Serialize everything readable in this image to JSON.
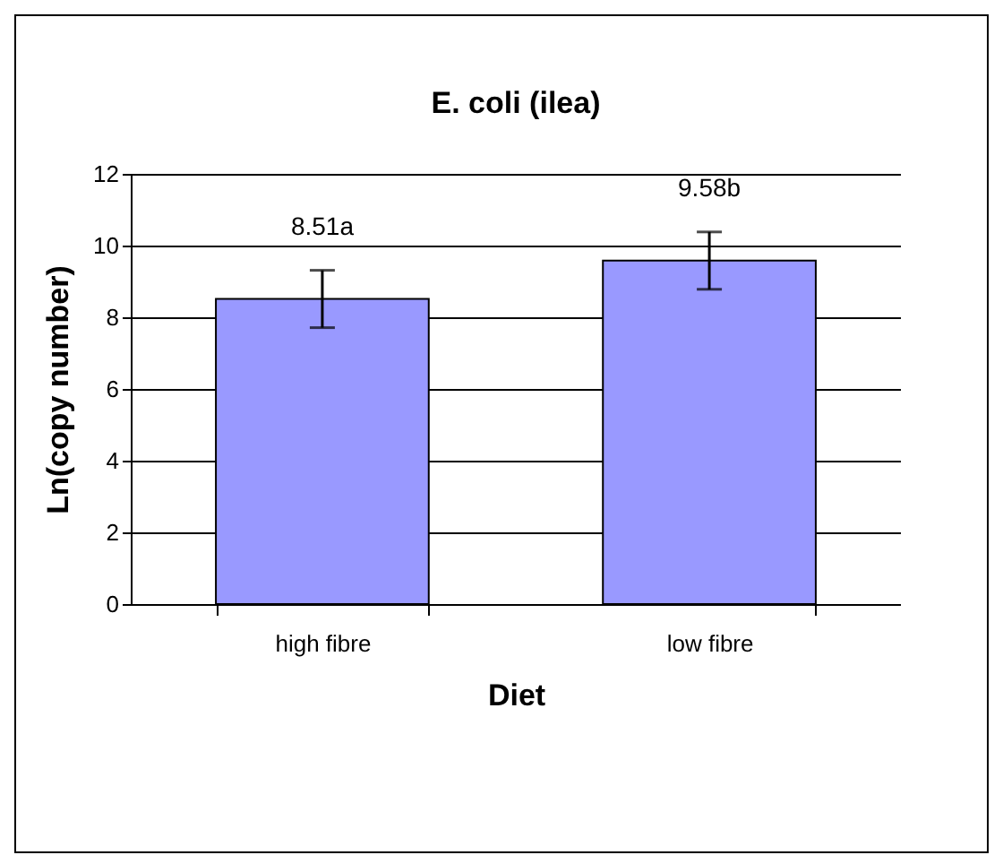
{
  "chart_data": {
    "type": "bar",
    "title": "E. coli (ilea)",
    "xlabel": "Diet",
    "ylabel": "Ln(copy number)",
    "categories": [
      "high fibre",
      "low fibre"
    ],
    "values": [
      8.51,
      9.58
    ],
    "errors": [
      0.8,
      0.8
    ],
    "value_labels": [
      "8.51a",
      "9.58b"
    ],
    "color": "#9999ff",
    "ylim": [
      0,
      12
    ],
    "yticks": [
      0,
      2,
      4,
      6,
      8,
      10,
      12
    ],
    "grid": "y"
  }
}
